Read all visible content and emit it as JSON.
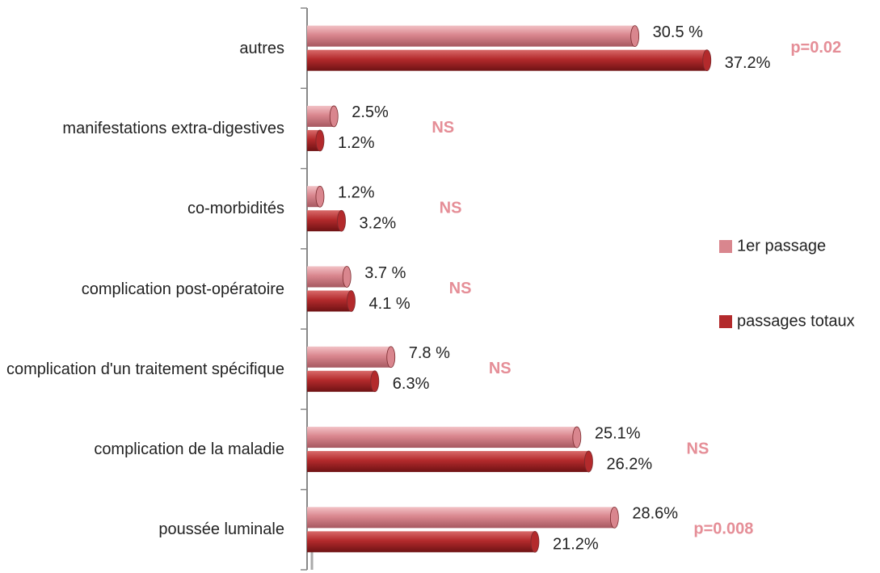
{
  "chart_data": {
    "type": "bar",
    "orientation": "horizontal",
    "categories": [
      "autres",
      "manifestations extra-digestives",
      "co-morbidités",
      "complication post-opératoire",
      "complication d'un traitement spécifique",
      "complication de la maladie ",
      "poussée luminale"
    ],
    "series": [
      {
        "name": "1er passage",
        "color": "#d9868e",
        "values": [
          30.5,
          2.5,
          1.2,
          3.7,
          7.8,
          25.1,
          28.6
        ],
        "value_labels": [
          "30.5 %",
          "2.5%",
          "1.2%",
          "3.7 %",
          "7.8 %",
          "25.1%",
          "28.6%"
        ]
      },
      {
        "name": "passages totaux",
        "color": "#b32a2c",
        "values": [
          37.2,
          1.2,
          3.2,
          4.1,
          6.3,
          26.2,
          21.2
        ],
        "value_labels": [
          "37.2%",
          "1.2%",
          "3.2%",
          "4.1 %",
          "6.3%",
          "26.2%",
          "21.2%"
        ]
      }
    ],
    "annotations": [
      "p=0.02",
      "NS",
      "NS",
      "NS",
      "NS",
      "NS",
      "p=0.008"
    ],
    "annotation_color": "#e58e97",
    "xlim": [
      0,
      40
    ],
    "legend": "right"
  }
}
